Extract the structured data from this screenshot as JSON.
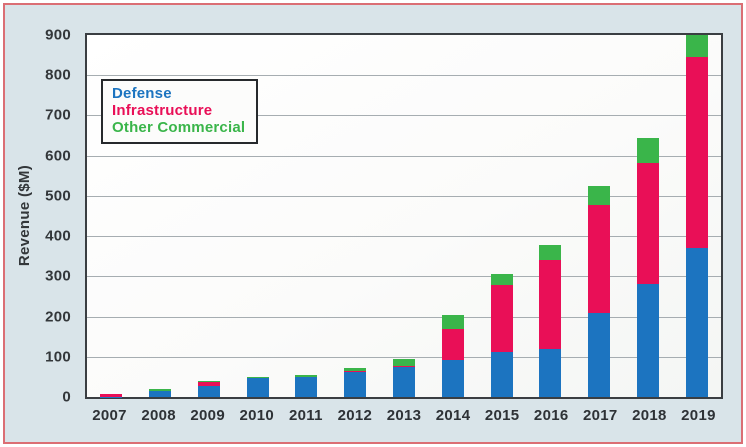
{
  "chart": {
    "ylabel": "Revenue ($M)"
  },
  "chart_data": {
    "type": "bar",
    "stacked": true,
    "title": "",
    "xlabel": "",
    "ylabel": "Revenue ($M)",
    "ylim": [
      0,
      900
    ],
    "ytick_step": 100,
    "yticks": [
      0,
      100,
      200,
      300,
      400,
      500,
      600,
      700,
      800,
      900
    ],
    "grid": true,
    "legend_position": "top-left",
    "categories": [
      "2007",
      "2008",
      "2009",
      "2010",
      "2011",
      "2012",
      "2013",
      "2014",
      "2015",
      "2016",
      "2017",
      "2018",
      "2019"
    ],
    "series": [
      {
        "name": "Defense",
        "color": "#1c74c0",
        "values": [
          1,
          16,
          28,
          47,
          50,
          63,
          75,
          92,
          112,
          120,
          210,
          280,
          370
        ]
      },
      {
        "name": "Infrastructure",
        "color": "#e90f57",
        "values": [
          7,
          0,
          10,
          0,
          1,
          1,
          2,
          78,
          167,
          220,
          267,
          303,
          475
        ]
      },
      {
        "name": "Other Commercial",
        "color": "#3ab54a",
        "values": [
          0,
          4,
          2,
          4,
          4,
          8,
          18,
          35,
          28,
          38,
          48,
          62,
          55
        ]
      }
    ]
  },
  "colors": {
    "panel_background": "#d9e4e9",
    "outer_border": "#db6e74",
    "plot_border": "#3a3e42",
    "gridline": "#a6adb1",
    "tick_text": "#33373a",
    "legend_border": "#26292c",
    "legend_background": "#fcfcfb"
  }
}
